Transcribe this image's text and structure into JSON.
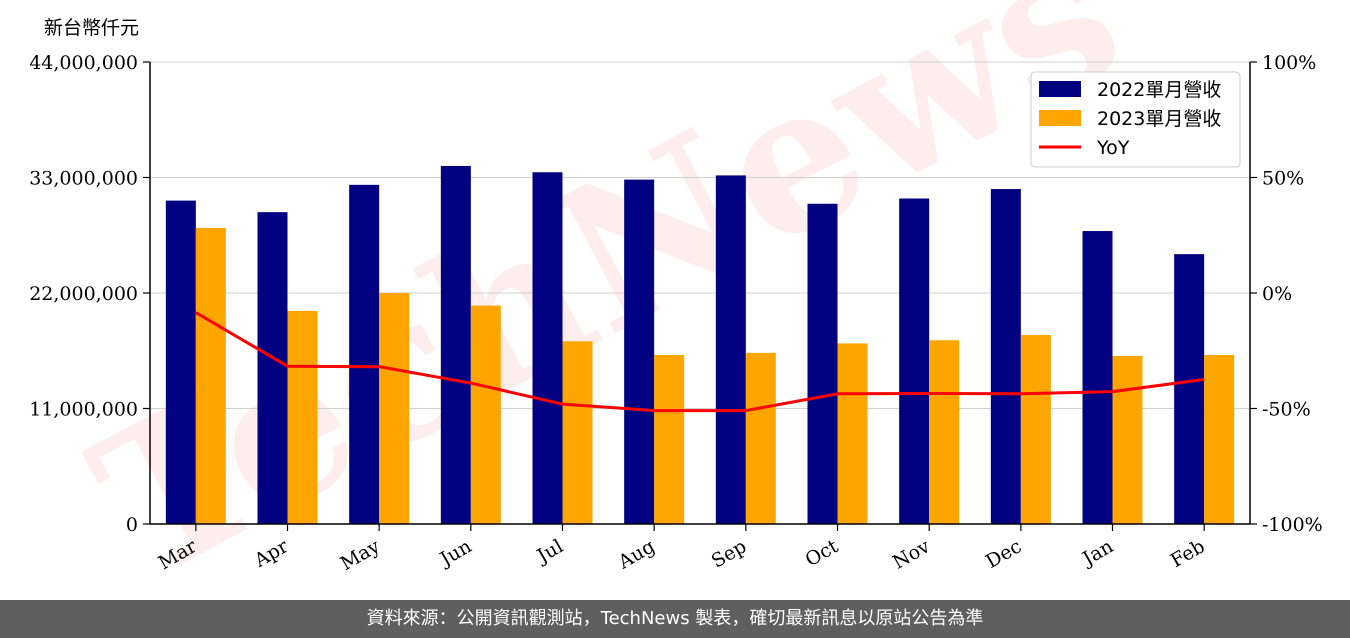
{
  "watermark": "TechNews",
  "footer": {
    "source_text": "資料來源：公開資訊觀測站，TechNews 製表，確切最新訊息以原站公告為準"
  },
  "colors": {
    "series_2022": "#000080",
    "series_2023": "#ffa500",
    "yoy": "#ff0000"
  },
  "chart_data": {
    "type": "bar",
    "unit_label": "新台幣仟元",
    "categories": [
      "Mar",
      "Apr",
      "May",
      "Jun",
      "Jul",
      "Aug",
      "Sep",
      "Oct",
      "Nov",
      "Dec",
      "Jan",
      "Feb"
    ],
    "series": [
      {
        "name": "2022單月營收",
        "values": [
          30800000,
          29700000,
          32300000,
          34100000,
          33500000,
          32800000,
          33200000,
          30500000,
          31000000,
          31900000,
          27900000,
          25700000
        ]
      },
      {
        "name": "2023單月營收",
        "values": [
          28200000,
          20300000,
          22000000,
          20800000,
          17400000,
          16100000,
          16300000,
          17200000,
          17500000,
          18000000,
          16000000,
          16100000
        ]
      }
    ],
    "line_series": {
      "name": "YoY",
      "axis": "right",
      "values": [
        -8.5,
        -31.7,
        -31.9,
        -39.0,
        -48.1,
        -50.9,
        -50.9,
        -43.6,
        -43.5,
        -43.6,
        -42.7,
        -37.4
      ]
    },
    "y_left": {
      "min": 0,
      "max": 44000000,
      "ticks": [
        0,
        11000000,
        22000000,
        33000000,
        44000000
      ],
      "tick_labels": [
        "0",
        "11,000,000",
        "22,000,000",
        "33,000,000",
        "44,000,000"
      ]
    },
    "y_right": {
      "min": -100,
      "max": 100,
      "ticks": [
        -100,
        -50,
        0,
        50,
        100
      ],
      "tick_labels": [
        "-100%",
        "-50%",
        "0%",
        "50%",
        "100%"
      ]
    },
    "grid": "horizontal",
    "legend": "top-right"
  }
}
